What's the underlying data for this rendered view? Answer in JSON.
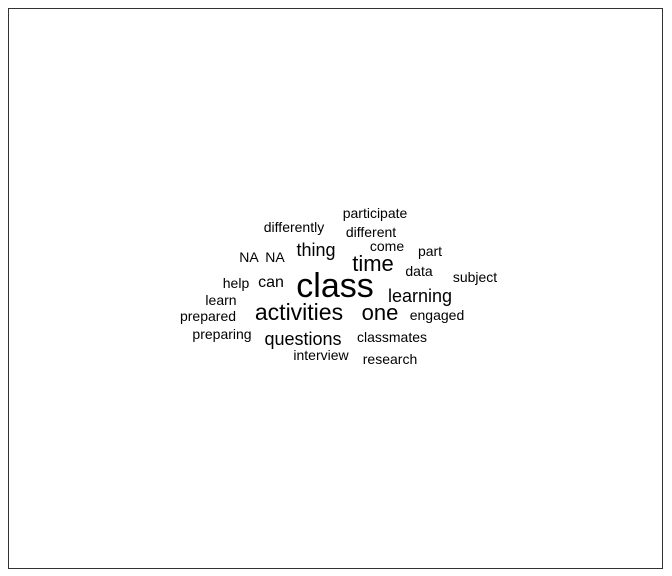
{
  "chart_data": {
    "type": "wordcloud",
    "title": "",
    "words": [
      {
        "text": "class",
        "weight": 10
      },
      {
        "text": "activities",
        "weight": 7
      },
      {
        "text": "time",
        "weight": 6
      },
      {
        "text": "one",
        "weight": 6
      },
      {
        "text": "thing",
        "weight": 5
      },
      {
        "text": "questions",
        "weight": 5
      },
      {
        "text": "learning",
        "weight": 5
      },
      {
        "text": "can",
        "weight": 4
      },
      {
        "text": "participate",
        "weight": 2
      },
      {
        "text": "differently",
        "weight": 2
      },
      {
        "text": "different",
        "weight": 2
      },
      {
        "text": "NA",
        "weight": 2
      },
      {
        "text": "NA",
        "weight": 2
      },
      {
        "text": "come",
        "weight": 2
      },
      {
        "text": "part",
        "weight": 2
      },
      {
        "text": "data",
        "weight": 2
      },
      {
        "text": "subject",
        "weight": 2
      },
      {
        "text": "help",
        "weight": 2
      },
      {
        "text": "learn",
        "weight": 2
      },
      {
        "text": "prepared",
        "weight": 2
      },
      {
        "text": "engaged",
        "weight": 2
      },
      {
        "text": "preparing",
        "weight": 2
      },
      {
        "text": "classmates",
        "weight": 2
      },
      {
        "text": "interview",
        "weight": 2
      },
      {
        "text": "research",
        "weight": 2
      }
    ]
  }
}
